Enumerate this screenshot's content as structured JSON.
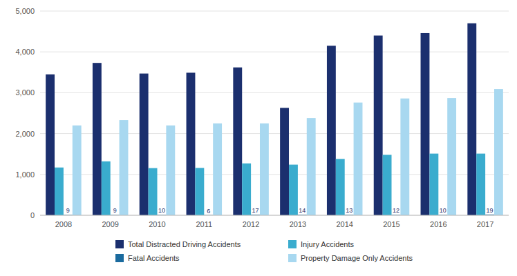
{
  "chart_data": {
    "type": "bar",
    "categories": [
      "2008",
      "2009",
      "2010",
      "2011",
      "2012",
      "2013",
      "2014",
      "2015",
      "2016",
      "2017"
    ],
    "series": [
      {
        "name": "Total Distracted Driving Accidents",
        "color": "#1b2f6e",
        "values": [
          3450,
          3730,
          3470,
          3490,
          3620,
          2630,
          4150,
          4400,
          4460,
          4700
        ]
      },
      {
        "name": "Injury Accidents",
        "color": "#3aacce",
        "values": [
          1170,
          1320,
          1155,
          1160,
          1270,
          1240,
          1380,
          1480,
          1510,
          1510
        ]
      },
      {
        "name": "Fatal Accidents",
        "color": "#1a6a9e",
        "values": [
          9,
          9,
          10,
          6,
          17,
          14,
          13,
          12,
          10,
          19
        ],
        "data_labels": true
      },
      {
        "name": "Property Damage Only Accidents",
        "color": "#a8d8f0",
        "values": [
          2200,
          2330,
          2200,
          2250,
          2250,
          2380,
          2760,
          2860,
          2870,
          3090
        ]
      }
    ],
    "ylim": [
      0,
      5000
    ],
    "yticks": [
      0,
      {
        "value": 1000,
        "label": "1,000"
      },
      {
        "value": 2000,
        "label": "2,000"
      },
      {
        "value": 3000,
        "label": "3,000"
      },
      {
        "value": 4000,
        "label": "4,000"
      },
      {
        "value": 5000,
        "label": "5,000"
      }
    ],
    "grid": true,
    "legend": "bottom"
  }
}
